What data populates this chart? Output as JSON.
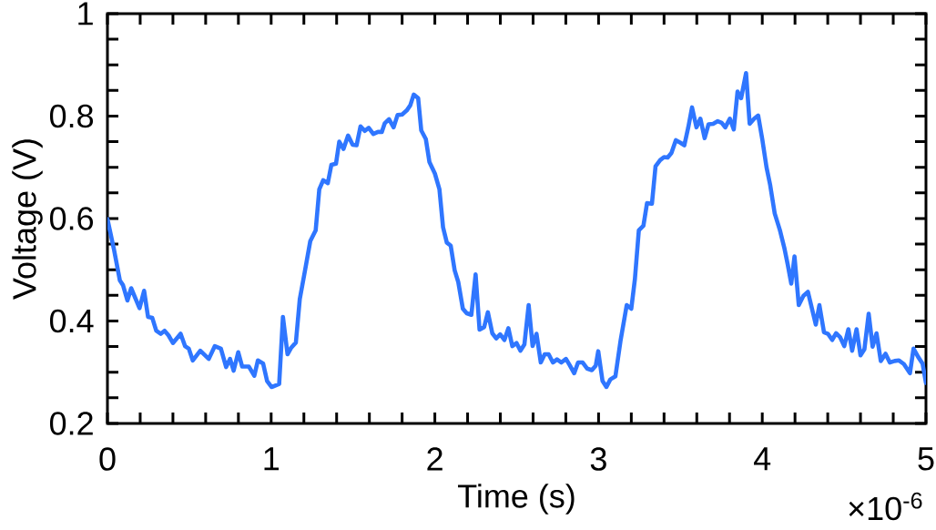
{
  "chart_data": {
    "type": "line",
    "xlabel": "Time (s)",
    "ylabel": "Voltage (V)",
    "annotations": [
      "×10$^{-6}$"
    ],
    "color": "#2f76ff",
    "xlim": [
      0,
      5
    ],
    "ylim": [
      0.2,
      1
    ],
    "xticks": [
      0,
      {
        "value": 0.2,
        "label": null
      },
      {
        "value": 0.4,
        "label": null
      },
      {
        "value": 0.6,
        "label": null
      },
      {
        "value": 0.8,
        "label": null
      },
      1,
      {
        "value": 1.2,
        "label": null
      },
      {
        "value": 1.4,
        "label": null
      },
      {
        "value": 1.6,
        "label": null
      },
      {
        "value": 1.8,
        "label": null
      },
      2,
      {
        "value": 2.2,
        "label": null
      },
      {
        "value": 2.4,
        "label": null
      },
      {
        "value": 2.6,
        "label": null
      },
      {
        "value": 2.8,
        "label": null
      },
      3,
      {
        "value": 3.2,
        "label": null
      },
      {
        "value": 3.4,
        "label": null
      },
      {
        "value": 3.6,
        "label": null
      },
      {
        "value": 3.8,
        "label": null
      },
      4,
      {
        "value": 4.2,
        "label": null
      },
      {
        "value": 4.4,
        "label": null
      },
      {
        "value": 4.6,
        "label": null
      },
      {
        "value": 4.8,
        "label": null
      },
      5
    ],
    "yticks": [
      0.2,
      {
        "value": 0.25,
        "label": null
      },
      {
        "value": 0.3,
        "label": null
      },
      {
        "value": 0.35,
        "label": null
      },
      0.4,
      {
        "value": 0.45,
        "label": null
      },
      {
        "value": 0.5,
        "label": null
      },
      {
        "value": 0.55,
        "label": null
      },
      0.6,
      {
        "value": 0.65,
        "label": null
      },
      {
        "value": 0.7,
        "label": null
      },
      {
        "value": 0.75,
        "label": null
      },
      0.8,
      {
        "value": 0.85,
        "label": null
      },
      {
        "value": 0.9,
        "label": null
      },
      {
        "value": 0.95,
        "label": null
      },
      1
    ],
    "x": [
      0,
      0.039,
      0.076,
      0.095,
      0.122,
      0.145,
      0.196,
      0.224,
      0.248,
      0.274,
      0.298,
      0.326,
      0.349,
      0.373,
      0.4,
      0.447,
      0.474,
      0.497,
      0.521,
      0.567,
      0.619,
      0.656,
      0.693,
      0.725,
      0.749,
      0.771,
      0.799,
      0.823,
      0.864,
      0.897,
      0.919,
      0.951,
      0.975,
      1.003,
      1.049,
      1.072,
      1.1,
      1.123,
      1.151,
      1.175,
      1.207,
      1.239,
      1.272,
      1.294,
      1.318,
      1.346,
      1.368,
      1.396,
      1.416,
      1.442,
      1.47,
      1.498,
      1.522,
      1.546,
      1.572,
      1.596,
      1.624,
      1.652,
      1.676,
      1.694,
      1.72,
      1.748,
      1.772,
      1.8,
      1.828,
      1.85,
      1.871,
      1.898,
      1.917,
      1.945,
      1.967,
      2.0,
      2.028,
      2.05,
      2.073,
      2.097,
      2.121,
      2.143,
      2.171,
      2.195,
      2.223,
      2.249,
      2.273,
      2.301,
      2.324,
      2.351,
      2.375,
      2.399,
      2.425,
      2.449,
      2.473,
      2.499,
      2.523,
      2.547,
      2.573,
      2.597,
      2.621,
      2.647,
      2.671,
      2.695,
      2.721,
      2.746,
      2.773,
      2.801,
      2.825,
      2.851,
      2.875,
      2.903,
      2.931,
      2.959,
      2.983,
      2.998,
      3.024,
      3.048,
      3.072,
      3.103,
      3.135,
      3.172,
      3.2,
      3.222,
      3.246,
      3.274,
      3.296,
      3.326,
      3.348,
      3.376,
      3.4,
      3.422,
      3.445,
      3.472,
      3.5,
      3.524,
      3.548,
      3.571,
      3.598,
      3.622,
      3.648,
      3.672,
      3.7,
      3.728,
      3.752,
      3.774,
      3.802,
      3.826,
      3.849,
      3.871,
      3.901,
      3.923,
      3.951,
      3.975,
      4.0,
      4.026,
      4.048,
      4.076,
      4.108,
      4.136,
      4.155,
      4.177,
      4.197,
      4.223,
      4.251,
      4.279,
      4.303,
      4.327,
      4.349,
      4.377,
      4.401,
      4.427,
      4.451,
      4.476,
      4.501,
      4.526,
      4.549,
      4.576,
      4.6,
      4.624,
      4.65,
      4.674,
      4.698,
      4.724,
      4.753,
      4.779,
      4.809,
      4.835,
      4.865,
      4.902,
      4.924,
      4.952,
      4.979,
      5.0
    ],
    "values": [
      0.599,
      0.541,
      0.479,
      0.47,
      0.44,
      0.464,
      0.425,
      0.459,
      0.408,
      0.406,
      0.381,
      0.375,
      0.381,
      0.372,
      0.357,
      0.375,
      0.351,
      0.346,
      0.323,
      0.342,
      0.326,
      0.351,
      0.346,
      0.31,
      0.326,
      0.303,
      0.339,
      0.311,
      0.311,
      0.293,
      0.323,
      0.317,
      0.283,
      0.271,
      0.277,
      0.408,
      0.335,
      0.348,
      0.358,
      0.443,
      0.499,
      0.556,
      0.577,
      0.657,
      0.675,
      0.669,
      0.705,
      0.707,
      0.75,
      0.736,
      0.762,
      0.744,
      0.743,
      0.78,
      0.771,
      0.777,
      0.765,
      0.769,
      0.769,
      0.786,
      0.794,
      0.778,
      0.802,
      0.803,
      0.811,
      0.821,
      0.842,
      0.835,
      0.772,
      0.755,
      0.71,
      0.688,
      0.657,
      0.583,
      0.553,
      0.547,
      0.499,
      0.476,
      0.424,
      0.415,
      0.412,
      0.491,
      0.383,
      0.388,
      0.417,
      0.376,
      0.366,
      0.374,
      0.363,
      0.386,
      0.351,
      0.357,
      0.342,
      0.354,
      0.431,
      0.351,
      0.375,
      0.319,
      0.335,
      0.335,
      0.319,
      0.325,
      0.319,
      0.326,
      0.313,
      0.298,
      0.319,
      0.319,
      0.307,
      0.304,
      0.313,
      0.341,
      0.283,
      0.271,
      0.286,
      0.292,
      0.363,
      0.431,
      0.424,
      0.482,
      0.577,
      0.586,
      0.63,
      0.629,
      0.702,
      0.714,
      0.72,
      0.719,
      0.728,
      0.753,
      0.748,
      0.743,
      0.778,
      0.817,
      0.778,
      0.795,
      0.757,
      0.784,
      0.785,
      0.79,
      0.787,
      0.778,
      0.795,
      0.774,
      0.848,
      0.835,
      0.884,
      0.785,
      0.795,
      0.801,
      0.755,
      0.7,
      0.666,
      0.61,
      0.577,
      0.541,
      0.511,
      0.473,
      0.526,
      0.431,
      0.449,
      0.457,
      0.425,
      0.393,
      0.431,
      0.378,
      0.375,
      0.363,
      0.376,
      0.368,
      0.351,
      0.384,
      0.342,
      0.384,
      0.333,
      0.345,
      0.414,
      0.35,
      0.376,
      0.322,
      0.336,
      0.319,
      0.322,
      0.323,
      0.316,
      0.298,
      0.346,
      0.33,
      0.317,
      0.279
    ]
  }
}
